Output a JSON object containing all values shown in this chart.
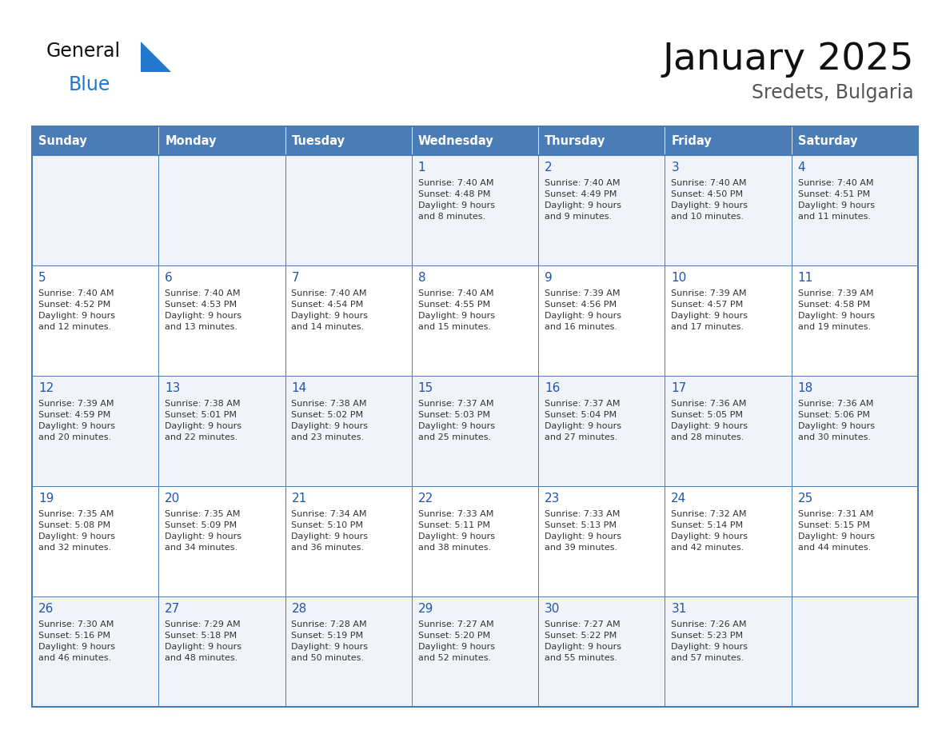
{
  "title": "January 2025",
  "subtitle": "Sredets, Bulgaria",
  "days_of_week": [
    "Sunday",
    "Monday",
    "Tuesday",
    "Wednesday",
    "Thursday",
    "Friday",
    "Saturday"
  ],
  "header_bg": "#4a7db5",
  "header_text_color": "#ffffff",
  "cell_bg_0": "#f0f4f8",
  "cell_bg_1": "#ffffff",
  "day_num_color": "#2255aa",
  "cell_text_color": "#333333",
  "grid_color": "#4a7db5",
  "calendar_data": [
    [
      null,
      null,
      null,
      {
        "day": "1",
        "sunrise": "7:40 AM",
        "sunset": "4:48 PM",
        "dl1": "9 hours",
        "dl2": "and 8 minutes."
      },
      {
        "day": "2",
        "sunrise": "7:40 AM",
        "sunset": "4:49 PM",
        "dl1": "9 hours",
        "dl2": "and 9 minutes."
      },
      {
        "day": "3",
        "sunrise": "7:40 AM",
        "sunset": "4:50 PM",
        "dl1": "9 hours",
        "dl2": "and 10 minutes."
      },
      {
        "day": "4",
        "sunrise": "7:40 AM",
        "sunset": "4:51 PM",
        "dl1": "9 hours",
        "dl2": "and 11 minutes."
      }
    ],
    [
      {
        "day": "5",
        "sunrise": "7:40 AM",
        "sunset": "4:52 PM",
        "dl1": "9 hours",
        "dl2": "and 12 minutes."
      },
      {
        "day": "6",
        "sunrise": "7:40 AM",
        "sunset": "4:53 PM",
        "dl1": "9 hours",
        "dl2": "and 13 minutes."
      },
      {
        "day": "7",
        "sunrise": "7:40 AM",
        "sunset": "4:54 PM",
        "dl1": "9 hours",
        "dl2": "and 14 minutes."
      },
      {
        "day": "8",
        "sunrise": "7:40 AM",
        "sunset": "4:55 PM",
        "dl1": "9 hours",
        "dl2": "and 15 minutes."
      },
      {
        "day": "9",
        "sunrise": "7:39 AM",
        "sunset": "4:56 PM",
        "dl1": "9 hours",
        "dl2": "and 16 minutes."
      },
      {
        "day": "10",
        "sunrise": "7:39 AM",
        "sunset": "4:57 PM",
        "dl1": "9 hours",
        "dl2": "and 17 minutes."
      },
      {
        "day": "11",
        "sunrise": "7:39 AM",
        "sunset": "4:58 PM",
        "dl1": "9 hours",
        "dl2": "and 19 minutes."
      }
    ],
    [
      {
        "day": "12",
        "sunrise": "7:39 AM",
        "sunset": "4:59 PM",
        "dl1": "9 hours",
        "dl2": "and 20 minutes."
      },
      {
        "day": "13",
        "sunrise": "7:38 AM",
        "sunset": "5:01 PM",
        "dl1": "9 hours",
        "dl2": "and 22 minutes."
      },
      {
        "day": "14",
        "sunrise": "7:38 AM",
        "sunset": "5:02 PM",
        "dl1": "9 hours",
        "dl2": "and 23 minutes."
      },
      {
        "day": "15",
        "sunrise": "7:37 AM",
        "sunset": "5:03 PM",
        "dl1": "9 hours",
        "dl2": "and 25 minutes."
      },
      {
        "day": "16",
        "sunrise": "7:37 AM",
        "sunset": "5:04 PM",
        "dl1": "9 hours",
        "dl2": "and 27 minutes."
      },
      {
        "day": "17",
        "sunrise": "7:36 AM",
        "sunset": "5:05 PM",
        "dl1": "9 hours",
        "dl2": "and 28 minutes."
      },
      {
        "day": "18",
        "sunrise": "7:36 AM",
        "sunset": "5:06 PM",
        "dl1": "9 hours",
        "dl2": "and 30 minutes."
      }
    ],
    [
      {
        "day": "19",
        "sunrise": "7:35 AM",
        "sunset": "5:08 PM",
        "dl1": "9 hours",
        "dl2": "and 32 minutes."
      },
      {
        "day": "20",
        "sunrise": "7:35 AM",
        "sunset": "5:09 PM",
        "dl1": "9 hours",
        "dl2": "and 34 minutes."
      },
      {
        "day": "21",
        "sunrise": "7:34 AM",
        "sunset": "5:10 PM",
        "dl1": "9 hours",
        "dl2": "and 36 minutes."
      },
      {
        "day": "22",
        "sunrise": "7:33 AM",
        "sunset": "5:11 PM",
        "dl1": "9 hours",
        "dl2": "and 38 minutes."
      },
      {
        "day": "23",
        "sunrise": "7:33 AM",
        "sunset": "5:13 PM",
        "dl1": "9 hours",
        "dl2": "and 39 minutes."
      },
      {
        "day": "24",
        "sunrise": "7:32 AM",
        "sunset": "5:14 PM",
        "dl1": "9 hours",
        "dl2": "and 42 minutes."
      },
      {
        "day": "25",
        "sunrise": "7:31 AM",
        "sunset": "5:15 PM",
        "dl1": "9 hours",
        "dl2": "and 44 minutes."
      }
    ],
    [
      {
        "day": "26",
        "sunrise": "7:30 AM",
        "sunset": "5:16 PM",
        "dl1": "9 hours",
        "dl2": "and 46 minutes."
      },
      {
        "day": "27",
        "sunrise": "7:29 AM",
        "sunset": "5:18 PM",
        "dl1": "9 hours",
        "dl2": "and 48 minutes."
      },
      {
        "day": "28",
        "sunrise": "7:28 AM",
        "sunset": "5:19 PM",
        "dl1": "9 hours",
        "dl2": "and 50 minutes."
      },
      {
        "day": "29",
        "sunrise": "7:27 AM",
        "sunset": "5:20 PM",
        "dl1": "9 hours",
        "dl2": "and 52 minutes."
      },
      {
        "day": "30",
        "sunrise": "7:27 AM",
        "sunset": "5:22 PM",
        "dl1": "9 hours",
        "dl2": "and 55 minutes."
      },
      {
        "day": "31",
        "sunrise": "7:26 AM",
        "sunset": "5:23 PM",
        "dl1": "9 hours",
        "dl2": "and 57 minutes."
      },
      null
    ]
  ]
}
